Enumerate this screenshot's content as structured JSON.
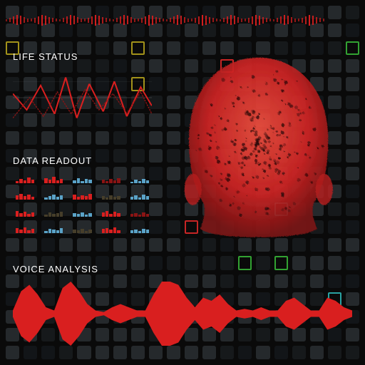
{
  "colors": {
    "background": "#0a0a0a",
    "grid_cell": "rgba(90,100,110,0.35)",
    "grid_cell_dim": "rgba(70,80,90,0.22)",
    "accent_red": "#d91f1f",
    "accent_red_dark": "#8a1414",
    "text": "#ffffff",
    "marker_yellow": "rgba(200,180,30,0.8)",
    "marker_cyan": "rgba(50,200,200,0.8)",
    "marker_green": "rgba(60,200,60,0.8)"
  },
  "top_bar": {
    "tick_count": 90,
    "heights_pattern": [
      3,
      6,
      10,
      14,
      12,
      8,
      5,
      4,
      7,
      11,
      15,
      13,
      9,
      6,
      4
    ]
  },
  "life_status": {
    "title": "LIFE STATUS",
    "title_fontsize": 13,
    "waveform_color": "#d91f1f",
    "baseline_color": "rgba(255,255,255,0.35)",
    "points": [
      0,
      30,
      10,
      50,
      20,
      20,
      30,
      55,
      38,
      10,
      46,
      60,
      55,
      18,
      65,
      52,
      73,
      15,
      82,
      58,
      92,
      22,
      100,
      45
    ],
    "points2": [
      0,
      60,
      12,
      35,
      22,
      58,
      32,
      28,
      42,
      55,
      52,
      25,
      62,
      50,
      72,
      30,
      82,
      54,
      92,
      28,
      100,
      55
    ]
  },
  "data_readout": {
    "title": "DATA READOUT",
    "title_fontsize": 13,
    "cells": [
      {
        "color": "#d91f1f",
        "bars": [
          0.3,
          0.6,
          0.4,
          0.8,
          0.5
        ]
      },
      {
        "color": "#d91f1f",
        "bars": [
          0.7,
          0.5,
          0.9,
          0.4,
          0.6
        ]
      },
      {
        "color": "#5aa3c8",
        "bars": [
          0.4,
          0.7,
          0.3,
          0.6,
          0.5
        ]
      },
      {
        "color": "#8a1414",
        "bars": [
          0.5,
          0.3,
          0.6,
          0.4,
          0.7
        ]
      },
      {
        "color": "#5aa3c8",
        "bars": [
          0.2,
          0.5,
          0.3,
          0.6,
          0.4
        ]
      },
      {
        "color": "#d91f1f",
        "bars": [
          0.6,
          0.8,
          0.5,
          0.7,
          0.4
        ]
      },
      {
        "color": "#5aa3c8",
        "bars": [
          0.3,
          0.5,
          0.7,
          0.4,
          0.6
        ]
      },
      {
        "color": "#d91f1f",
        "bars": [
          0.7,
          0.4,
          0.6,
          0.5,
          0.8
        ]
      },
      {
        "color": "#463e2a",
        "bars": [
          0.5,
          0.3,
          0.6,
          0.4,
          0.5
        ]
      },
      {
        "color": "#5aa3c8",
        "bars": [
          0.4,
          0.6,
          0.3,
          0.7,
          0.5
        ]
      },
      {
        "color": "#d91f1f",
        "bars": [
          0.8,
          0.5,
          0.7,
          0.4,
          0.6
        ]
      },
      {
        "color": "#463e2a",
        "bars": [
          0.3,
          0.6,
          0.4,
          0.5,
          0.7
        ]
      },
      {
        "color": "#5aa3c8",
        "bars": [
          0.5,
          0.4,
          0.6,
          0.3,
          0.5
        ]
      },
      {
        "color": "#d91f1f",
        "bars": [
          0.6,
          0.8,
          0.4,
          0.7,
          0.5
        ]
      },
      {
        "color": "#8a1414",
        "bars": [
          0.4,
          0.5,
          0.3,
          0.6,
          0.4
        ]
      },
      {
        "color": "#d91f1f",
        "bars": [
          0.7,
          0.5,
          0.8,
          0.4,
          0.6
        ]
      },
      {
        "color": "#5aa3c8",
        "bars": [
          0.3,
          0.6,
          0.5,
          0.4,
          0.7
        ]
      },
      {
        "color": "#463e2a",
        "bars": [
          0.5,
          0.4,
          0.6,
          0.3,
          0.5
        ]
      },
      {
        "color": "#d91f1f",
        "bars": [
          0.6,
          0.7,
          0.5,
          0.8,
          0.4
        ]
      },
      {
        "color": "#5aa3c8",
        "bars": [
          0.4,
          0.5,
          0.3,
          0.6,
          0.5
        ]
      }
    ]
  },
  "voice_analysis": {
    "title": "VOICE ANALYSIS",
    "title_fontsize": 13,
    "fill_color": "#d91f1f",
    "envelope": [
      0.1,
      0.7,
      0.9,
      0.6,
      0.2,
      0.1,
      0.8,
      1.0,
      0.7,
      0.3,
      0.1,
      0.05,
      0.2,
      0.3,
      0.2,
      0.1,
      0.1,
      0.6,
      1.0,
      1.0,
      0.9,
      0.5,
      0.2,
      0.5,
      0.4,
      0.6,
      0.3,
      0.1,
      0.15,
      0.1,
      0.2,
      0.1,
      0.1,
      0.4,
      0.5,
      0.3,
      0.1,
      0.1,
      0.5,
      0.4,
      0.2,
      0.1
    ]
  },
  "head_visual": {
    "fill_color": "#e03030",
    "dark_color": "#6b1010",
    "opacity": 0.92
  },
  "bg_markers": [
    {
      "row": 2,
      "col": 0,
      "variant": "yellow"
    },
    {
      "row": 2,
      "col": 7,
      "variant": "yellow"
    },
    {
      "row": 4,
      "col": 7,
      "variant": "yellow"
    },
    {
      "row": 2,
      "col": 19,
      "variant": "green"
    },
    {
      "row": 3,
      "col": 12,
      "variant": "red"
    },
    {
      "row": 11,
      "col": 15,
      "variant": "cyan"
    },
    {
      "row": 12,
      "col": 10,
      "variant": "red"
    },
    {
      "row": 14,
      "col": 13,
      "variant": "green"
    },
    {
      "row": 14,
      "col": 15,
      "variant": "green"
    },
    {
      "row": 16,
      "col": 18,
      "variant": "cyan"
    }
  ]
}
